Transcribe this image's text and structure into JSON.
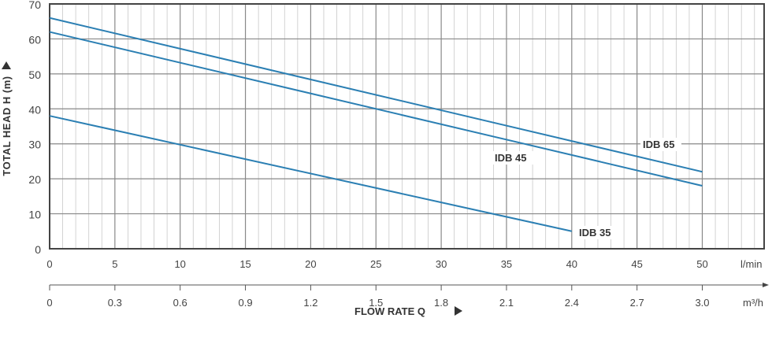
{
  "chart_data": {
    "type": "line",
    "ylabel": "TOTAL HEAD H (m)",
    "xlabel": "FLOW RATE Q",
    "x_unit": "l/min",
    "x2_unit": "m³/h",
    "ylim": [
      0,
      70
    ],
    "xlim": [
      0,
      50
    ],
    "grid": true,
    "y_ticks": [
      "0",
      "10",
      "20",
      "30",
      "40",
      "50",
      "60",
      "70"
    ],
    "x_ticks": [
      "0",
      "5",
      "10",
      "15",
      "20",
      "25",
      "30",
      "35",
      "40",
      "45",
      "50"
    ],
    "x2_ticks": [
      "0",
      "0.3",
      "0.6",
      "0.9",
      "1.2",
      "1.5",
      "1.8",
      "2.1",
      "2.4",
      "2.7",
      "3.0"
    ],
    "line_color": "#2b7fb3",
    "series": [
      {
        "name": "IDB 65",
        "x": [
          0,
          50
        ],
        "y": [
          66,
          22
        ]
      },
      {
        "name": "IDB 45",
        "x": [
          0,
          50
        ],
        "y": [
          62,
          18
        ]
      },
      {
        "name": "IDB 35",
        "x": [
          0,
          40
        ],
        "y": [
          38,
          5
        ]
      }
    ]
  }
}
